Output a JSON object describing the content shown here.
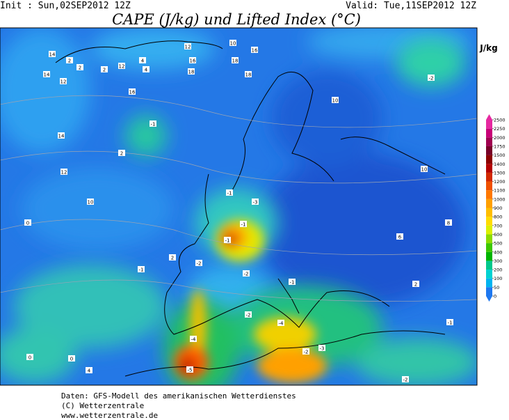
{
  "header": {
    "init": "Init : Sun,02SEP2012 12Z",
    "valid": "Valid: Tue,11SEP2012 12Z",
    "title": "CAPE (J/kg) und Lifted Index (°C)"
  },
  "colorbar": {
    "unit": "J/kg",
    "ticks": [
      0,
      50,
      100,
      200,
      300,
      400,
      500,
      600,
      700,
      800,
      900,
      1000,
      1100,
      1200,
      1300,
      1400,
      1500,
      1750,
      2000,
      2250,
      2500
    ],
    "colors": [
      "#1e78f0",
      "#00b4f0",
      "#00d2d2",
      "#00c88c",
      "#00b400",
      "#3cc800",
      "#8cdc00",
      "#dcf000",
      "#ffdc00",
      "#ffbe00",
      "#ffa000",
      "#ff7800",
      "#f05000",
      "#d22800",
      "#b40000",
      "#8c0000",
      "#780028",
      "#a00050",
      "#c80078",
      "#e628a0"
    ]
  },
  "map": {
    "labels": [
      2,
      14,
      14,
      12,
      2,
      2,
      12,
      4,
      4,
      12,
      16,
      18,
      10,
      16,
      18,
      18,
      16,
      -1,
      2,
      14,
      12,
      10,
      0,
      -1,
      -3,
      -1,
      -1,
      -2,
      2,
      -1,
      -2,
      -1,
      -4,
      -2,
      -2,
      -3,
      -4,
      -5,
      -2,
      -2,
      10,
      10,
      8,
      6,
      2,
      -1,
      0,
      0,
      4
    ]
  },
  "footer": {
    "lines": [
      "Daten: GFS-Modell des amerikanischen Wetterdienstes",
      "(C) Wetterzentrale",
      "www.wetterzentrale.de"
    ]
  }
}
